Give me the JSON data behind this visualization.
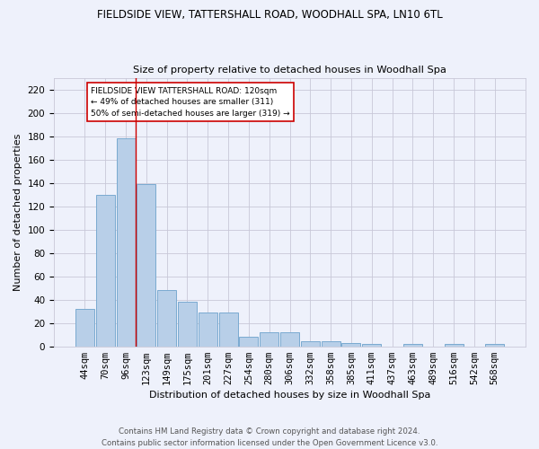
{
  "title1": "FIELDSIDE VIEW, TATTERSHALL ROAD, WOODHALL SPA, LN10 6TL",
  "title2": "Size of property relative to detached houses in Woodhall Spa",
  "xlabel": "Distribution of detached houses by size in Woodhall Spa",
  "ylabel": "Number of detached properties",
  "categories": [
    "44sqm",
    "70sqm",
    "96sqm",
    "123sqm",
    "149sqm",
    "175sqm",
    "201sqm",
    "227sqm",
    "254sqm",
    "280sqm",
    "306sqm",
    "332sqm",
    "358sqm",
    "385sqm",
    "411sqm",
    "437sqm",
    "463sqm",
    "489sqm",
    "516sqm",
    "542sqm",
    "568sqm"
  ],
  "values": [
    32,
    130,
    178,
    139,
    48,
    38,
    29,
    29,
    8,
    12,
    12,
    4,
    4,
    3,
    2,
    0,
    2,
    0,
    2,
    0,
    2
  ],
  "bar_color": "#b8cfe8",
  "bar_edge_color": "#7aaad0",
  "bar_linewidth": 0.7,
  "grid_color": "#c8c8d8",
  "bg_color": "#eef1fb",
  "red_line_x": 2.5,
  "annotation_text": "FIELDSIDE VIEW TATTERSHALL ROAD: 120sqm\n← 49% of detached houses are smaller (311)\n50% of semi-detached houses are larger (319) →",
  "annotation_box_color": "#ffffff",
  "annotation_box_edge": "#cc0000",
  "red_line_color": "#cc0000",
  "ylim": [
    0,
    230
  ],
  "yticks": [
    0,
    20,
    40,
    60,
    80,
    100,
    120,
    140,
    160,
    180,
    200,
    220
  ],
  "footer": "Contains HM Land Registry data © Crown copyright and database right 2024.\nContains public sector information licensed under the Open Government Licence v3.0.",
  "title1_fontsize": 8.5,
  "title2_fontsize": 8.2,
  "xlabel_fontsize": 8.0,
  "ylabel_fontsize": 8.0,
  "footer_fontsize": 6.2,
  "tick_fontsize": 7.5
}
